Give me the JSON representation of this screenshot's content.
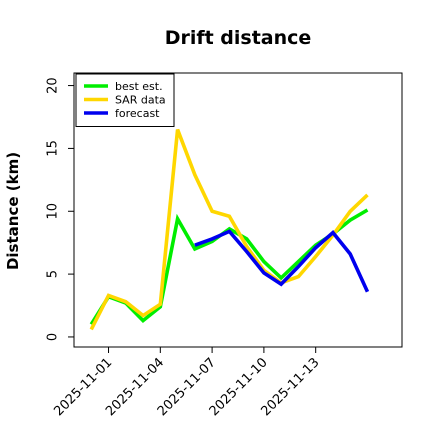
{
  "chart_data": {
    "type": "line",
    "title": "Drift distance",
    "xlabel": "",
    "ylabel": "Distance (km)",
    "ylim": [
      -0.8,
      21
    ],
    "yticks": [
      0,
      5,
      10,
      15,
      20
    ],
    "xtick_labels": [
      "2025-11-01",
      "2025-11-04",
      "2025-11-07",
      "2025-11-10",
      "2025-11-13"
    ],
    "x_start": "2025-10-30",
    "x_end": "2025-11-18",
    "legend_position": "top-left",
    "grid": false,
    "series": [
      {
        "name": "best est.",
        "color": "#00ee00",
        "points": [
          [
            "2025-10-31",
            1.0
          ],
          [
            "2025-11-01",
            3.2
          ],
          [
            "2025-11-02",
            2.7
          ],
          [
            "2025-11-03",
            1.3
          ],
          [
            "2025-11-04",
            2.4
          ],
          [
            "2025-11-05",
            9.4
          ],
          [
            "2025-11-06",
            7.0
          ],
          [
            "2025-11-07",
            7.6
          ],
          [
            "2025-11-08",
            8.6
          ],
          [
            "2025-11-09",
            7.8
          ],
          [
            "2025-11-10",
            6.0
          ],
          [
            "2025-11-11",
            4.7
          ],
          [
            "2025-11-12",
            6.0
          ],
          [
            "2025-11-13",
            7.3
          ],
          [
            "2025-11-14",
            8.2
          ],
          [
            "2025-11-15",
            9.3
          ],
          [
            "2025-11-16",
            10.1
          ]
        ]
      },
      {
        "name": "SAR data",
        "color": "#ffd700",
        "points": [
          [
            "2025-10-31",
            0.6
          ],
          [
            "2025-11-01",
            3.3
          ],
          [
            "2025-11-02",
            2.8
          ],
          [
            "2025-11-03",
            1.7
          ],
          [
            "2025-11-04",
            2.6
          ],
          [
            "2025-11-05",
            16.5
          ],
          [
            "2025-11-06",
            12.9
          ],
          [
            "2025-11-07",
            10.0
          ],
          [
            "2025-11-08",
            9.6
          ],
          [
            "2025-11-09",
            7.2
          ],
          [
            "2025-11-10",
            5.3
          ],
          [
            "2025-11-11",
            4.3
          ],
          [
            "2025-11-12",
            4.8
          ],
          [
            "2025-11-13",
            6.4
          ],
          [
            "2025-11-14",
            8.1
          ],
          [
            "2025-11-15",
            10.0
          ],
          [
            "2025-11-16",
            11.3
          ]
        ]
      },
      {
        "name": "forecast",
        "color": "#0000ee",
        "points": [
          [
            "2025-11-06",
            7.3
          ],
          [
            "2025-11-07",
            7.8
          ],
          [
            "2025-11-08",
            8.4
          ],
          [
            "2025-11-09",
            6.8
          ],
          [
            "2025-11-10",
            5.1
          ],
          [
            "2025-11-11",
            4.2
          ],
          [
            "2025-11-12",
            5.6
          ],
          [
            "2025-11-13",
            7.1
          ],
          [
            "2025-11-14",
            8.3
          ],
          [
            "2025-11-15",
            6.6
          ],
          [
            "2025-11-16",
            3.6
          ]
        ]
      }
    ]
  }
}
